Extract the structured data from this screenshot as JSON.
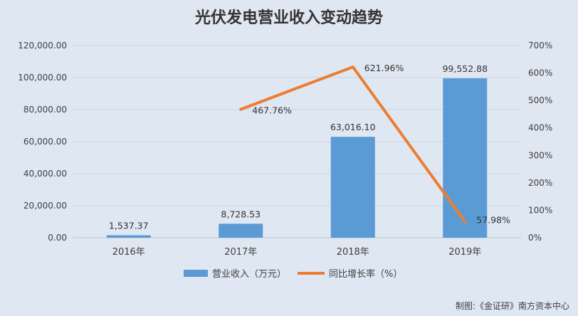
{
  "chart_data": {
    "type": "bar",
    "title": "光伏发电营业收入变动趋势",
    "categories": [
      "2016年",
      "2017年",
      "2018年",
      "2019年"
    ],
    "series": [
      {
        "name": "营业收入（万元）",
        "type": "bar",
        "axis": "left",
        "values": [
          1537.37,
          8728.53,
          63016.1,
          99552.88
        ],
        "labels": [
          "1,537.37",
          "8,728.53",
          "63,016.10",
          "99,552.88"
        ],
        "color": "#5b9bd5"
      },
      {
        "name": "同比增长率（%）",
        "type": "line",
        "axis": "right",
        "values": [
          null,
          467.76,
          621.96,
          57.98
        ],
        "labels": [
          "",
          "467.76%",
          "621.96%",
          "57.98%"
        ],
        "color": "#ed7d31"
      }
    ],
    "y_left": {
      "min": 0,
      "max": 120000,
      "ticks": [
        0,
        20000,
        40000,
        60000,
        80000,
        100000,
        120000
      ],
      "tick_labels": [
        "0.00",
        "20,000.00",
        "40,000.00",
        "60,000.00",
        "80,000.00",
        "100,000.00",
        "120,000.00"
      ]
    },
    "y_right": {
      "min": 0,
      "max": 700,
      "ticks": [
        0,
        100,
        200,
        300,
        400,
        500,
        600,
        700
      ],
      "tick_labels": [
        "0%",
        "100%",
        "200%",
        "300%",
        "400%",
        "500%",
        "600%",
        "700%"
      ]
    },
    "grid": true,
    "legend_position": "bottom",
    "background": "#dfe7f2",
    "gridline_color": "#c9d3e0"
  },
  "credit": "制图:《金证研》南方资本中心"
}
